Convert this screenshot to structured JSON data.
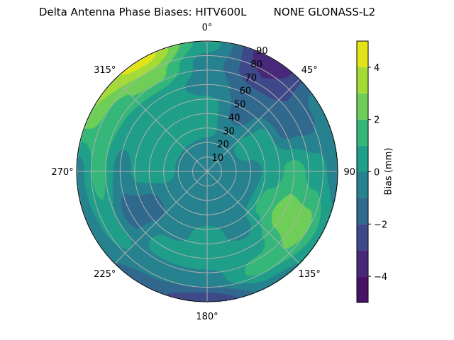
{
  "chart_data": {
    "type": "heatmap",
    "subtype": "polar-filled-contour",
    "title": "Delta Antenna Phase Biases: HITV600L        NONE GLONASS-L2",
    "angular_axis": {
      "labels": [
        "0°",
        "45°",
        "90°",
        "135°",
        "180°",
        "225°",
        "270°",
        "315°"
      ],
      "direction": "clockwise",
      "zero_location": "top"
    },
    "radial_axis": {
      "labels": [
        "10",
        "20",
        "30",
        "40",
        "50",
        "60",
        "70",
        "80",
        "90"
      ],
      "range": [
        0,
        90
      ]
    },
    "grid": true,
    "colorbar": {
      "label": "Bias (mm)",
      "ticks": [
        "4",
        "2",
        "0",
        "−2",
        "−4"
      ],
      "tick_values": [
        4,
        2,
        0,
        -2,
        -4
      ],
      "range": [
        -5,
        5
      ],
      "levels": [
        -5,
        -4,
        -3,
        -2,
        -1,
        0,
        1,
        2,
        3,
        4,
        5
      ],
      "colormap": "viridis",
      "colors": [
        "#471365",
        "#482878",
        "#3e4989",
        "#31688e",
        "#26828e",
        "#1f9e89",
        "#35b779",
        "#6ece58",
        "#a5db36",
        "#e2e418"
      ]
    },
    "azimuths": [
      0,
      30,
      60,
      90,
      120,
      150,
      180,
      210,
      240,
      270,
      300,
      330
    ],
    "zeniths": [
      0,
      15,
      30,
      45,
      60,
      75,
      90
    ],
    "bias_mm": [
      [
        -0.5,
        -0.5,
        0.3,
        0.5,
        -0.5,
        -0.5,
        0.5
      ],
      [
        -0.5,
        -0.5,
        -0.5,
        -1.5,
        -1.5,
        -3.0,
        -4.0
      ],
      [
        -0.5,
        -0.5,
        0.5,
        0.5,
        -1.5,
        -1.5,
        -0.5
      ],
      [
        -0.5,
        -0.5,
        -0.5,
        0.5,
        1.5,
        0.5,
        -0.5
      ],
      [
        -0.5,
        -0.5,
        -0.5,
        1.5,
        2.5,
        2.5,
        0.5
      ],
      [
        -0.5,
        -0.5,
        -0.5,
        -0.5,
        0.5,
        1.5,
        -0.5
      ],
      [
        -0.5,
        -0.5,
        -0.5,
        0.5,
        0.5,
        -0.5,
        -3.0
      ],
      [
        -0.5,
        -0.5,
        -0.5,
        -0.5,
        0.5,
        -0.5,
        -1.5
      ],
      [
        -0.5,
        -0.5,
        -0.5,
        -1.5,
        -1.5,
        0.5,
        -0.5
      ],
      [
        -0.5,
        -0.5,
        0.5,
        0.5,
        -0.5,
        1.5,
        -0.5
      ],
      [
        -0.5,
        -0.5,
        0.5,
        0.5,
        0.5,
        1.5,
        3.0
      ],
      [
        -0.5,
        -0.5,
        0.5,
        0.5,
        0.5,
        2.5,
        4.5
      ]
    ]
  }
}
